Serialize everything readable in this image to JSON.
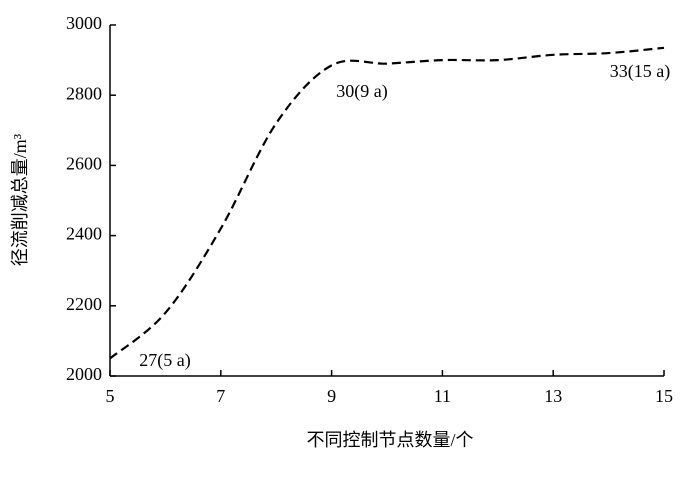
{
  "chart_data": {
    "type": "line",
    "x": [
      5,
      6,
      7,
      8,
      9,
      10,
      11,
      12,
      13,
      14,
      15
    ],
    "series": [
      {
        "color": "#000000",
        "values": [
          2050,
          2180,
          2420,
          2720,
          2885,
          2890,
          2900,
          2900,
          2915,
          2920,
          2935
        ]
      }
    ],
    "xlabel": "不同控制节点数量/个",
    "ylabel": "径流削减总量/m³",
    "xlim": [
      5,
      15
    ],
    "xticks": [
      5,
      7,
      9,
      11,
      13,
      15
    ],
    "ylim": [
      2000,
      3000
    ],
    "yticks": [
      2000,
      2200,
      2400,
      2600,
      2800,
      3000
    ],
    "annotations": [
      "27(5 a)",
      "30(9 a)",
      "33(15 a)"
    ],
    "grid": false,
    "line_style": "dashed"
  }
}
